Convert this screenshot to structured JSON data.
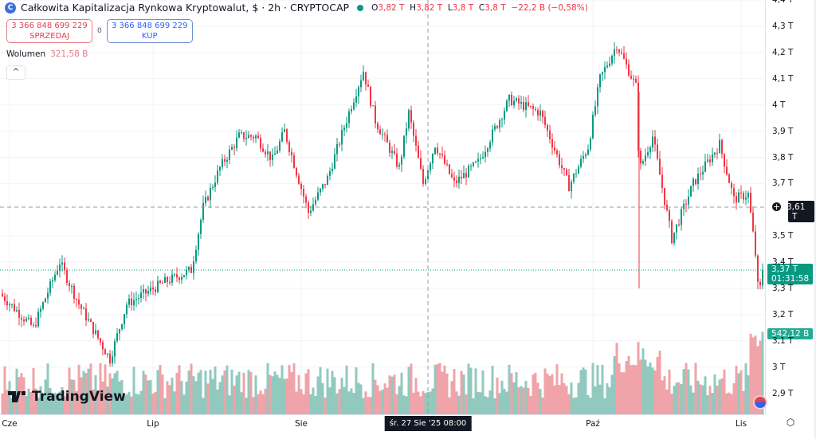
{
  "header": {
    "title": "Całkowita Kapitalizacja Rynkowa Kryptowalut, $ · 2h · CRYPTOCAP",
    "logo_letter": "C",
    "ohlc": [
      {
        "k": "O",
        "v": "3,82 T"
      },
      {
        "k": "H",
        "v": "3,82 T"
      },
      {
        "k": "L",
        "v": "3,8 T"
      },
      {
        "k": "C",
        "v": "3,8 T"
      }
    ],
    "change": "−22,2 B (−0,58%)"
  },
  "trade": {
    "sell_price": "3 366 848 699 229",
    "sell_label": "SPRZEDAJ",
    "spread": "0",
    "buy_price": "3 366 848 699 229",
    "buy_label": "KUP"
  },
  "volume": {
    "label": "Wolumen",
    "value": "321,58 B"
  },
  "collapse_icon": "^",
  "brand": "TradingView",
  "colors": {
    "up": "#089981",
    "down": "#f23645",
    "vol_up": "#92c9bf",
    "vol_down": "#f0a3a8"
  },
  "price_axis": {
    "labels": [
      "4,4 T",
      "4,3 T",
      "4,2 T",
      "4,1 T",
      "4 T",
      "3,9 T",
      "3,8 T",
      "3,7 T",
      "3,5 T",
      "3,4 T",
      "3,3 T",
      "3,2 T",
      "3,1 T",
      "3 T",
      "2,9 T"
    ],
    "crosshair_price": "3,61 T",
    "last_price": "3,37 T",
    "countdown": "01:31:58",
    "last_volume": "542,12 B"
  },
  "time_axis": {
    "labels": [
      {
        "t": "Cze",
        "day": 0
      },
      {
        "t": "Lip",
        "day": 30
      },
      {
        "t": "Sie",
        "day": 61
      },
      {
        "t": "Paź",
        "day": 122
      },
      {
        "t": "Lis",
        "day": 153
      }
    ],
    "crosshair": "śr. 27 Sie '25   08:00"
  },
  "chart_data": {
    "type": "candlestick",
    "unit": "T USD",
    "x_unit": "days since 1 Jun 2025",
    "waypoints": [
      [
        -2,
        3.28
      ],
      [
        5,
        3.15
      ],
      [
        10.5,
        3.4
      ],
      [
        14.5,
        3.24
      ],
      [
        21,
        3.03
      ],
      [
        24.5,
        3.24
      ],
      [
        32,
        3.32
      ],
      [
        38,
        3.37
      ],
      [
        40.5,
        3.61
      ],
      [
        44,
        3.76
      ],
      [
        48,
        3.88
      ],
      [
        51.5,
        3.88
      ],
      [
        55,
        3.79
      ],
      [
        57.5,
        3.9
      ],
      [
        62.5,
        3.59
      ],
      [
        66.5,
        3.72
      ],
      [
        71.5,
        4.0
      ],
      [
        74,
        4.13
      ],
      [
        76.5,
        3.94
      ],
      [
        81.5,
        3.76
      ],
      [
        83.5,
        3.97
      ],
      [
        86.5,
        3.7
      ],
      [
        89,
        3.85
      ],
      [
        93,
        3.7
      ],
      [
        98,
        3.78
      ],
      [
        104.5,
        4.02
      ],
      [
        111,
        3.97
      ],
      [
        117,
        3.69
      ],
      [
        121,
        3.84
      ],
      [
        123.5,
        4.1
      ],
      [
        127,
        4.23
      ],
      [
        131,
        4.07
      ],
      [
        131.7,
        3.75
      ],
      [
        134.5,
        3.88
      ],
      [
        138.5,
        3.49
      ],
      [
        143,
        3.7
      ],
      [
        148.5,
        3.85
      ],
      [
        151.5,
        3.64
      ],
      [
        154.5,
        3.66
      ],
      [
        156,
        3.43
      ],
      [
        156.7,
        3.26
      ],
      [
        157.5,
        3.37
      ]
    ],
    "crosshair_value": 3.61,
    "last": 3.37
  }
}
